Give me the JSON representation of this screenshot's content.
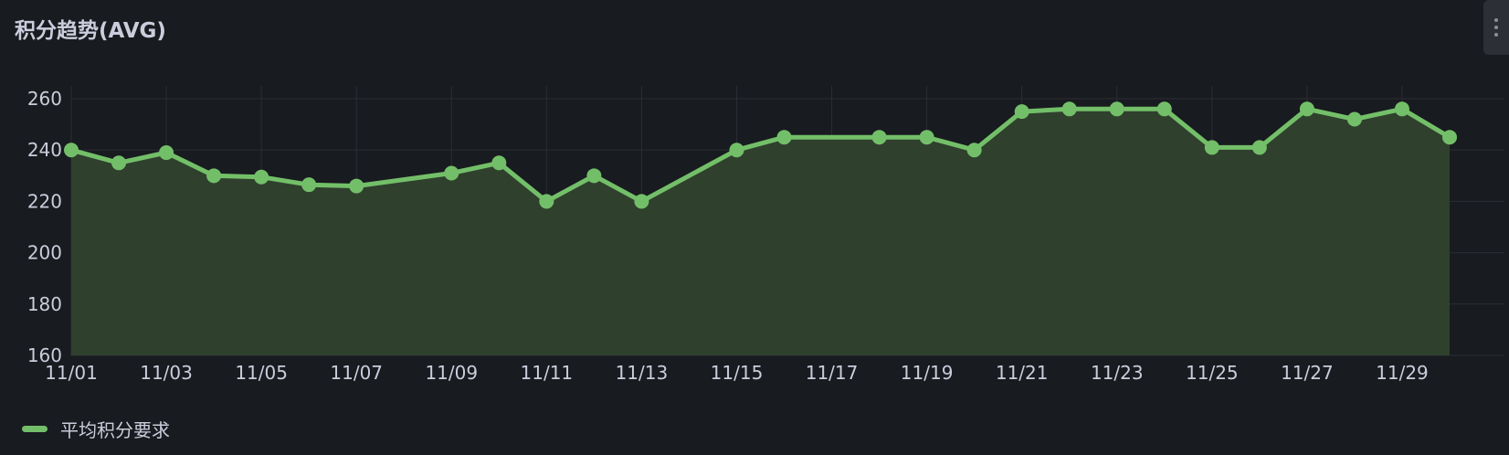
{
  "panel": {
    "title": "积分趋势(AVG)"
  },
  "colors": {
    "background": "#181b1f",
    "series": "#73bf69",
    "fill": "#2f402d",
    "grid": "#2b2e34",
    "text": "#ccccdc"
  },
  "chart_data": {
    "type": "area",
    "title": "积分趋势(AVG)",
    "xlabel": "",
    "ylabel": "",
    "x": [
      "11/01",
      "11/02",
      "11/03",
      "11/04",
      "11/05",
      "11/06",
      "11/07",
      "11/09",
      "11/10",
      "11/11",
      "11/12",
      "11/13",
      "11/15",
      "11/16",
      "11/18",
      "11/19",
      "11/20",
      "11/21",
      "11/22",
      "11/23",
      "11/24",
      "11/25",
      "11/26",
      "11/27",
      "11/28",
      "11/29",
      "11/30"
    ],
    "xticks": [
      "11/01",
      "11/03",
      "11/05",
      "11/07",
      "11/09",
      "11/11",
      "11/13",
      "11/15",
      "11/17",
      "11/19",
      "11/21",
      "11/23",
      "11/25",
      "11/27",
      "11/29"
    ],
    "yticks": [
      160,
      180,
      200,
      220,
      240,
      260
    ],
    "ylim": [
      160,
      265
    ],
    "grid": true,
    "legend_position": "bottom-left",
    "series": [
      {
        "name": "平均积分要求",
        "color": "#73bf69",
        "values": [
          240,
          235,
          239,
          230,
          229.5,
          226.5,
          226,
          231,
          235,
          220,
          230,
          220,
          240,
          245,
          245,
          245,
          240,
          255,
          256,
          256,
          256,
          241,
          241,
          256,
          252,
          256,
          245
        ]
      }
    ]
  },
  "legend": {
    "label": "平均积分要求"
  }
}
